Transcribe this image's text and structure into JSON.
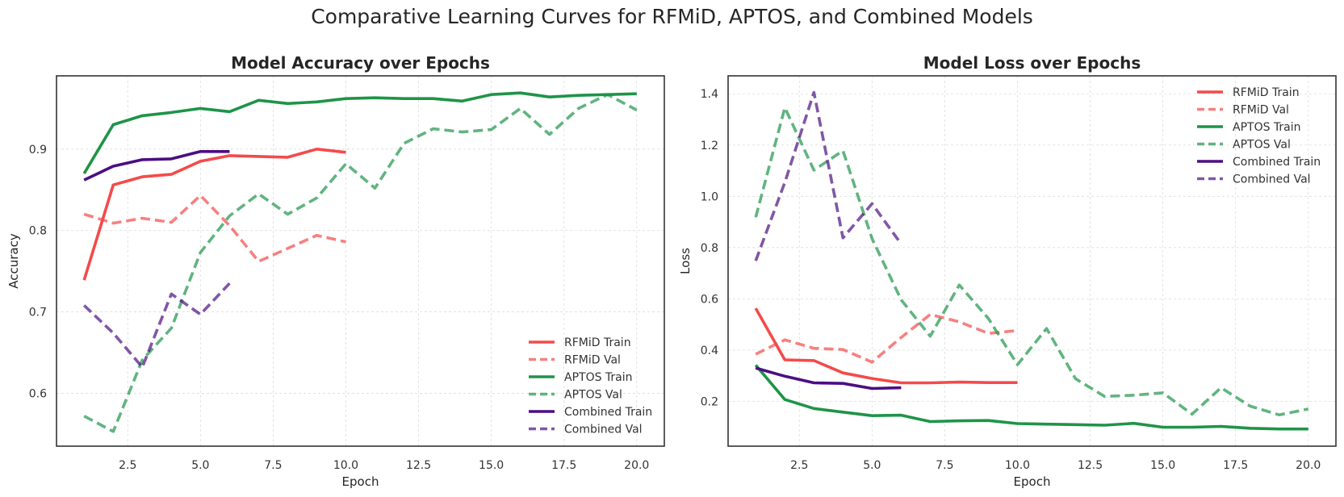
{
  "figure": {
    "suptitle": "Comparative Learning Curves for RFMiD, APTOS, and Combined Models"
  },
  "colors": {
    "rfmid": "#f44a4a",
    "aptos": "#1e9448",
    "combined": "#4b0e82",
    "grid": "#dddddd",
    "axes": "#333333"
  },
  "chart_data": [
    {
      "type": "line",
      "title": "Model Accuracy over Epochs",
      "xlabel": "Epoch",
      "ylabel": "Accuracy",
      "xlim": [
        0.05,
        20.95
      ],
      "ylim": [
        0.535,
        0.99
      ],
      "xticks": [
        2.5,
        5.0,
        7.5,
        10.0,
        12.5,
        15.0,
        17.5,
        20.0
      ],
      "yticks": [
        0.6,
        0.7,
        0.8,
        0.9
      ],
      "grid": true,
      "legend_position": "bottom-right",
      "series": [
        {
          "name": "RFMiD Train",
          "color": "#f44a4a",
          "dash": false,
          "opacity": 1.0,
          "x": [
            1,
            2,
            3,
            4,
            5,
            6,
            7,
            8,
            9,
            10
          ],
          "y": [
            0.739,
            0.856,
            0.866,
            0.869,
            0.885,
            0.892,
            0.891,
            0.89,
            0.9,
            0.896
          ]
        },
        {
          "name": "RFMiD Val",
          "color": "#f44a4a",
          "dash": true,
          "opacity": 0.7,
          "x": [
            1,
            2,
            3,
            4,
            5,
            6,
            7,
            8,
            9,
            10
          ],
          "y": [
            0.82,
            0.809,
            0.815,
            0.81,
            0.843,
            0.806,
            0.762,
            0.778,
            0.794,
            0.786
          ]
        },
        {
          "name": "APTOS Train",
          "color": "#1e9448",
          "dash": false,
          "opacity": 1.0,
          "x": [
            1,
            2,
            3,
            4,
            5,
            6,
            7,
            8,
            9,
            10,
            11,
            12,
            13,
            14,
            15,
            16,
            17,
            18,
            19,
            20
          ],
          "y": [
            0.87,
            0.93,
            0.941,
            0.945,
            0.95,
            0.946,
            0.96,
            0.956,
            0.958,
            0.962,
            0.963,
            0.962,
            0.962,
            0.959,
            0.967,
            0.969,
            0.964,
            0.966,
            0.967,
            0.968
          ]
        },
        {
          "name": "APTOS Val",
          "color": "#1e9448",
          "dash": true,
          "opacity": 0.7,
          "x": [
            1,
            2,
            3,
            4,
            5,
            6,
            7,
            8,
            9,
            10,
            11,
            12,
            13,
            14,
            15,
            16,
            17,
            18,
            19,
            20
          ],
          "y": [
            0.572,
            0.553,
            0.641,
            0.68,
            0.773,
            0.818,
            0.845,
            0.82,
            0.84,
            0.882,
            0.852,
            0.907,
            0.925,
            0.921,
            0.924,
            0.95,
            0.918,
            0.95,
            0.967,
            0.948
          ]
        },
        {
          "name": "Combined Train",
          "color": "#4b0e82",
          "dash": false,
          "opacity": 1.0,
          "x": [
            1,
            2,
            3,
            4,
            5,
            6
          ],
          "y": [
            0.862,
            0.879,
            0.887,
            0.888,
            0.897,
            0.897
          ]
        },
        {
          "name": "Combined Val",
          "color": "#4b0e82",
          "dash": true,
          "opacity": 0.7,
          "x": [
            1,
            2,
            3,
            4,
            5,
            6
          ],
          "y": [
            0.708,
            0.674,
            0.632,
            0.722,
            0.697,
            0.735
          ]
        }
      ]
    },
    {
      "type": "line",
      "title": "Model Loss over Epochs",
      "xlabel": "Epoch",
      "ylabel": "Loss",
      "xlim": [
        0.05,
        20.95
      ],
      "ylim": [
        0.025,
        1.47
      ],
      "xticks": [
        2.5,
        5.0,
        7.5,
        10.0,
        12.5,
        15.0,
        17.5,
        20.0
      ],
      "yticks": [
        0.2,
        0.4,
        0.6,
        0.8,
        1.0,
        1.2,
        1.4
      ],
      "grid": true,
      "legend_position": "top-right",
      "series": [
        {
          "name": "RFMiD Train",
          "color": "#f44a4a",
          "dash": false,
          "opacity": 1.0,
          "x": [
            1,
            2,
            3,
            4,
            5,
            6,
            7,
            8,
            9,
            10
          ],
          "y": [
            0.563,
            0.362,
            0.359,
            0.311,
            0.289,
            0.272,
            0.272,
            0.275,
            0.273,
            0.273
          ]
        },
        {
          "name": "RFMiD Val",
          "color": "#f44a4a",
          "dash": true,
          "opacity": 0.7,
          "x": [
            1,
            2,
            3,
            4,
            5,
            6,
            7,
            8,
            9,
            10
          ],
          "y": [
            0.384,
            0.44,
            0.407,
            0.402,
            0.353,
            0.449,
            0.539,
            0.51,
            0.465,
            0.476
          ]
        },
        {
          "name": "APTOS Train",
          "color": "#1e9448",
          "dash": false,
          "opacity": 1.0,
          "x": [
            1,
            2,
            3,
            4,
            5,
            6,
            7,
            8,
            9,
            10,
            11,
            12,
            13,
            14,
            15,
            16,
            17,
            18,
            19,
            20
          ],
          "y": [
            0.341,
            0.207,
            0.172,
            0.158,
            0.144,
            0.146,
            0.121,
            0.124,
            0.125,
            0.113,
            0.111,
            0.109,
            0.107,
            0.114,
            0.099,
            0.099,
            0.102,
            0.095,
            0.092,
            0.092
          ]
        },
        {
          "name": "APTOS Val",
          "color": "#1e9448",
          "dash": true,
          "opacity": 0.7,
          "x": [
            1,
            2,
            3,
            4,
            5,
            6,
            7,
            8,
            9,
            10,
            11,
            12,
            13,
            14,
            15,
            16,
            17,
            18,
            19,
            20
          ],
          "y": [
            0.918,
            1.346,
            1.102,
            1.178,
            0.835,
            0.596,
            0.454,
            0.654,
            0.523,
            0.343,
            0.484,
            0.288,
            0.219,
            0.224,
            0.233,
            0.15,
            0.253,
            0.181,
            0.147,
            0.17
          ]
        },
        {
          "name": "Combined Train",
          "color": "#4b0e82",
          "dash": false,
          "opacity": 1.0,
          "x": [
            1,
            2,
            3,
            4,
            5,
            6
          ],
          "y": [
            0.33,
            0.298,
            0.272,
            0.27,
            0.25,
            0.253
          ]
        },
        {
          "name": "Combined Val",
          "color": "#4b0e82",
          "dash": true,
          "opacity": 0.7,
          "x": [
            1,
            2,
            3,
            4,
            5,
            6
          ],
          "y": [
            0.748,
            1.054,
            1.405,
            0.838,
            0.971,
            0.814
          ]
        }
      ]
    }
  ]
}
